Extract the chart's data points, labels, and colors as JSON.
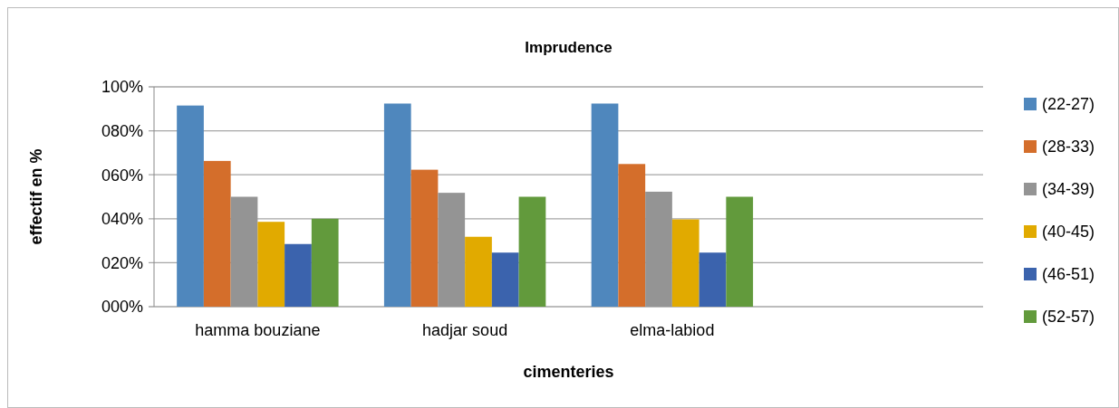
{
  "chart_data": {
    "type": "bar",
    "title": "Imprudence",
    "xlabel": "cimenteries",
    "ylabel": "effectif en %",
    "categories": [
      "hamma bouziane",
      "hadjar soud",
      "elma-labiod",
      null
    ],
    "series": [
      {
        "name": "(22-27)",
        "color": "#4f87bd",
        "values": [
          91.5,
          92.4,
          92.4,
          null
        ]
      },
      {
        "name": "(28-33)",
        "color": "#d46e2b",
        "values": [
          66.3,
          62.3,
          64.9,
          null
        ]
      },
      {
        "name": "(34-39)",
        "color": "#949494",
        "values": [
          50,
          51.8,
          52.3,
          null
        ]
      },
      {
        "name": "(40-45)",
        "color": "#e1aa00",
        "values": [
          38.6,
          31.8,
          39.7,
          null
        ]
      },
      {
        "name": "(46-51)",
        "color": "#3b63ad",
        "values": [
          28.5,
          24.6,
          24.6,
          null
        ]
      },
      {
        "name": "(52-57)",
        "color": "#629a3c",
        "values": [
          40,
          50,
          50,
          null
        ]
      }
    ],
    "ylim": [
      0,
      100
    ],
    "yticks": [
      {
        "value": 0,
        "label": "000%"
      },
      {
        "value": 20,
        "label": "020%"
      },
      {
        "value": 40,
        "label": "040%"
      },
      {
        "value": 60,
        "label": "060%"
      },
      {
        "value": 80,
        "label": "080%"
      },
      {
        "value": 100,
        "label": "100%"
      }
    ],
    "grid": "y",
    "legend": "right"
  }
}
